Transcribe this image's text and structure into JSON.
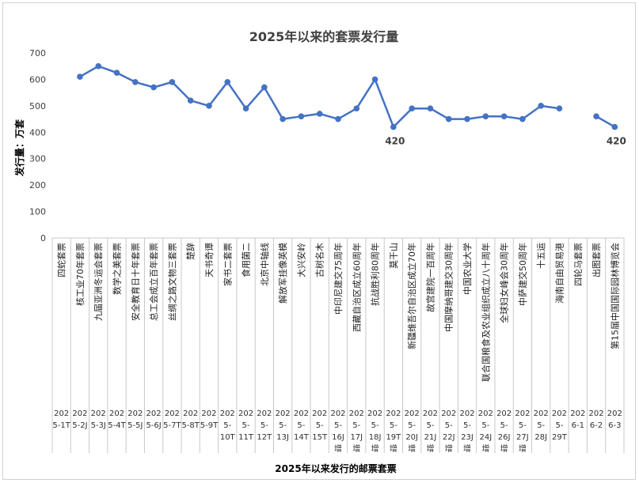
{
  "chart_data": {
    "type": "line",
    "title": "2025年以来的套票发行量",
    "xlabel": "2025年以来发行的邮票套票",
    "ylabel": "发行量：万套",
    "ylim": [
      0,
      700
    ],
    "yticks": [
      0,
      100,
      200,
      300,
      400,
      500,
      600,
      700
    ],
    "grid": false,
    "legend": "none",
    "line_color": "#4472C4",
    "categories": [
      {
        "name": "四蛇套票",
        "code": [
          "202",
          "5-1T"
        ]
      },
      {
        "name": "核工业70年套票",
        "code": [
          "202",
          "5-2J"
        ]
      },
      {
        "name": "九届亚洲冬运会套票",
        "code": [
          "202",
          "5-3J"
        ]
      },
      {
        "name": "数学之美套票",
        "code": [
          "202",
          "5-4T"
        ]
      },
      {
        "name": "安全教育日十年套票",
        "code": [
          "202",
          "5-5J"
        ]
      },
      {
        "name": "总工会成立百年套票",
        "code": [
          "202",
          "5-6J"
        ]
      },
      {
        "name": "丝绸之路文物三套票",
        "code": [
          "202",
          "5-7T"
        ]
      },
      {
        "name": "楚辞",
        "code": [
          "202",
          "5-8T"
        ]
      },
      {
        "name": "天书奇谭",
        "code": [
          "202",
          "5-9T"
        ]
      },
      {
        "name": "家书二套票",
        "code": [
          "202",
          "5-",
          "10T"
        ]
      },
      {
        "name": "食用菌二",
        "code": [
          "202",
          "5-",
          "11T"
        ]
      },
      {
        "name": "北京中轴线",
        "code": [
          "202",
          "5-",
          "12T"
        ]
      },
      {
        "name": "解放军挂像英模",
        "code": [
          "202",
          "5-",
          "13J"
        ]
      },
      {
        "name": "大兴安岭",
        "code": [
          "202",
          "5-",
          "14T"
        ]
      },
      {
        "name": "古树名木",
        "code": [
          "202",
          "5-",
          "15T"
        ]
      },
      {
        "name": "中印尼建交75周年",
        "code": [
          "202",
          "5-",
          "16J",
          "增"
        ]
      },
      {
        "name": "西藏自治区成立60周年",
        "code": [
          "202",
          "5-",
          "17J",
          "增"
        ]
      },
      {
        "name": "抗战胜利80周年",
        "code": [
          "202",
          "5-",
          "18J",
          "增"
        ]
      },
      {
        "name": "莫干山",
        "code": [
          "202",
          "5-",
          "19T",
          "增"
        ]
      },
      {
        "name": "新疆维吾尔自治区成立70年",
        "code": [
          "202",
          "5-",
          "20J",
          "增"
        ]
      },
      {
        "name": "故宫建院一百周年",
        "code": [
          "202",
          "5-",
          "21J",
          "增"
        ]
      },
      {
        "name": "中国摩纳哥建交30周年",
        "code": [
          "202",
          "5-",
          "22J",
          "增"
        ]
      },
      {
        "name": "中国农业大学",
        "code": [
          "202",
          "5-",
          "23J",
          "增"
        ]
      },
      {
        "name": "联合国粮食及农业组织成立八十周年",
        "code": [
          "202",
          "5-",
          "24J",
          "增"
        ]
      },
      {
        "name": "全球妇女峰会30周年",
        "code": [
          "202",
          "5-",
          "26J",
          "增"
        ]
      },
      {
        "name": "中萨建交50周年",
        "code": [
          "202",
          "5-",
          "27J",
          "增"
        ]
      },
      {
        "name": "十五运",
        "code": [
          "202",
          "5-",
          "28J"
        ]
      },
      {
        "name": "海南自由贸易港",
        "code": [
          "202",
          "5-",
          "29T"
        ]
      },
      {
        "name": "四轮马套票",
        "code": [
          "202",
          "6-1"
        ]
      },
      {
        "name": "出图套票",
        "code": [
          "202",
          "6-2"
        ]
      },
      {
        "name": "第15届中国国际园林博览会",
        "code": [
          "202",
          "6-3"
        ]
      }
    ],
    "values": [
      null,
      610,
      650,
      625,
      590,
      570,
      590,
      520,
      500,
      590,
      490,
      570,
      450,
      460,
      470,
      450,
      490,
      600,
      420,
      490,
      490,
      450,
      450,
      460,
      460,
      450,
      500,
      490,
      null,
      460,
      420
    ],
    "data_labels": [
      {
        "index": 18,
        "text": "420"
      },
      {
        "index": 30,
        "text": "420"
      }
    ]
  }
}
